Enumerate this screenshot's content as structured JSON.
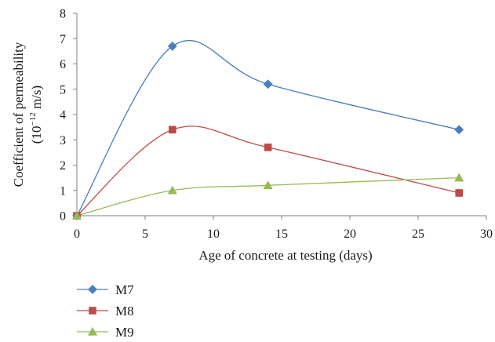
{
  "chart_data": {
    "type": "line",
    "xlabel": "Age of concrete at testing (days)",
    "ylabel_line1": "Coefficient of permeability",
    "ylabel_line2_prefix": "(10",
    "ylabel_line2_exp": "−12",
    "ylabel_line2_suffix": " m/s)",
    "xlim": [
      0,
      30
    ],
    "ylim": [
      0,
      8
    ],
    "xticks": [
      0,
      5,
      10,
      15,
      20,
      25,
      30
    ],
    "yticks": [
      0,
      1,
      2,
      3,
      4,
      5,
      6,
      7,
      8
    ],
    "grid": false,
    "smooth": true,
    "legend_position": "bottom-left",
    "x": [
      0,
      7,
      14,
      28
    ],
    "series": [
      {
        "name": "M7",
        "marker": "diamond",
        "color": "#4a7ebb",
        "values": [
          0,
          6.7,
          5.2,
          3.4
        ]
      },
      {
        "name": "M8",
        "marker": "square",
        "color": "#be4b48",
        "values": [
          0,
          3.4,
          2.7,
          0.9
        ]
      },
      {
        "name": "M9",
        "marker": "triangle",
        "color": "#98b954",
        "values": [
          0,
          1.0,
          1.2,
          1.5
        ]
      }
    ]
  }
}
